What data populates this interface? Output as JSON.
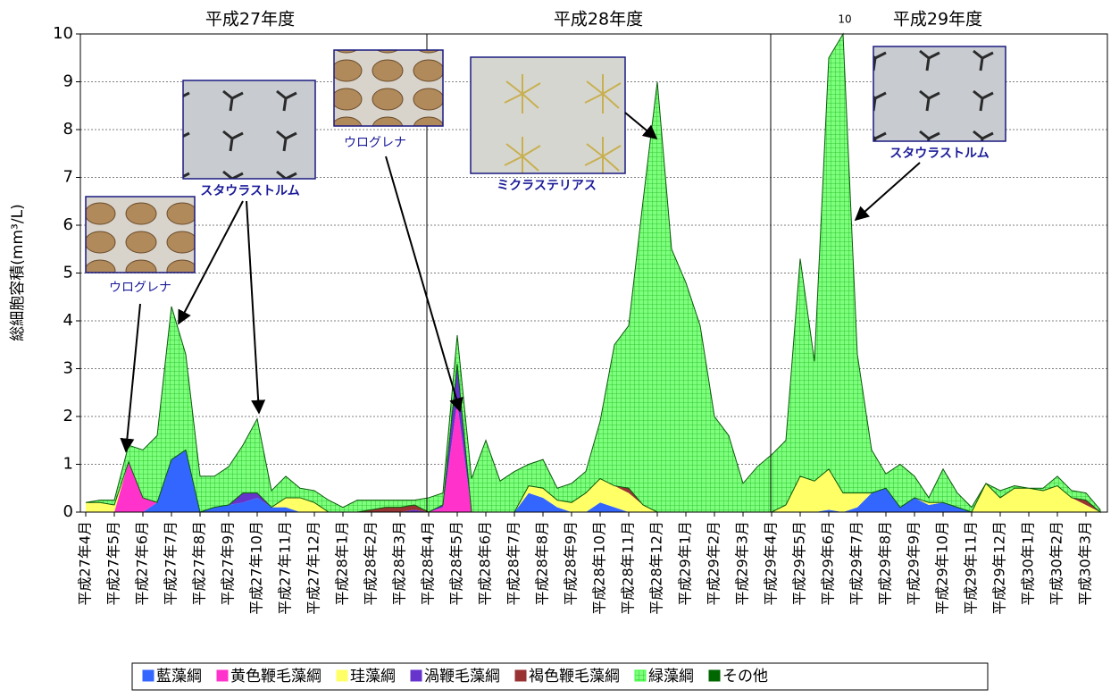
{
  "chart_data": {
    "type": "stacked-area",
    "y_label": "総細胞容積(mm³/L)",
    "annotations": {
      "years": [
        "平成27年度",
        "平成28年度",
        "平成29年度"
      ],
      "peak": "10",
      "captions": [
        "ウログレナ",
        "スタウラストルム",
        "ウログレナ",
        "ミクラステリアス",
        "スタウラストルム"
      ]
    },
    "categories": [
      "平成27年4月",
      null,
      "平成27年5月",
      null,
      "平成27年6月",
      null,
      "平成27年7月",
      null,
      "平成27年8月",
      null,
      "平成27年9月",
      null,
      "平成27年10月",
      null,
      "平成27年11月",
      null,
      "平成27年12月",
      null,
      "平成28年1月",
      null,
      "平成28年2月",
      null,
      "平成28年3月",
      null,
      "平成28年4月",
      null,
      "平成28年5月",
      null,
      "平成28年6月",
      null,
      "平成28年7月",
      null,
      "平成28年8月",
      null,
      "平成28年9月",
      null,
      "平成28年10月",
      null,
      "平成28年11月",
      null,
      "平成28年12月",
      null,
      "平成29年1月",
      null,
      "平成29年2月",
      null,
      "平成29年3月",
      null,
      "平成29年4月",
      null,
      "平成29年5月",
      null,
      "平成29年6月",
      null,
      "平成29年7月",
      null,
      "平成29年8月",
      null,
      "平成29年9月",
      null,
      "平成29年10月",
      null,
      "平成29年11月",
      null,
      "平成29年12月",
      null,
      "平成30年1月",
      null,
      "平成30年2月",
      null,
      "平成30年3月",
      null
    ],
    "series": [
      {
        "name": "藍藻綱",
        "color": "#3366ff",
        "values": [
          0,
          0,
          0,
          0,
          0,
          0.2,
          1.1,
          1.3,
          0,
          0.1,
          0.15,
          0.2,
          0.3,
          0.1,
          0.1,
          0,
          0,
          0,
          0,
          0,
          0,
          0,
          0,
          0,
          0,
          0,
          0,
          0,
          0,
          0,
          0,
          0.4,
          0.3,
          0.1,
          0,
          0,
          0.2,
          0.1,
          0,
          0,
          0,
          0,
          0,
          0,
          0,
          0,
          0,
          0,
          0,
          0,
          0,
          0,
          0.05,
          0,
          0.1,
          0.4,
          0.5,
          0.1,
          0.3,
          0.15,
          0.2,
          0.1,
          0,
          0,
          0,
          0,
          0,
          0,
          0,
          0,
          0,
          0
        ]
      },
      {
        "name": "黄色鞭毛藻綱",
        "color": "#ff33cc",
        "values": [
          0,
          0,
          0,
          1.05,
          0.3,
          0,
          0,
          0,
          0,
          0,
          0,
          0,
          0,
          0,
          0,
          0,
          0,
          0,
          0,
          0,
          0,
          0,
          0,
          0,
          0,
          0.1,
          2.3,
          0,
          0,
          0,
          0,
          0,
          0,
          0,
          0,
          0,
          0,
          0,
          0,
          0,
          0,
          0,
          0,
          0,
          0,
          0,
          0,
          0,
          0,
          0,
          0,
          0,
          0,
          0,
          0,
          0,
          0,
          0,
          0,
          0,
          0,
          0,
          0,
          0,
          0,
          0,
          0,
          0,
          0,
          0,
          0,
          0
        ]
      },
      {
        "name": "珪藻綱",
        "color": "#ffff66",
        "values": [
          0.2,
          0.2,
          0.15,
          0,
          0,
          0,
          0,
          0,
          0,
          0,
          0,
          0,
          0,
          0,
          0.2,
          0.3,
          0.2,
          0,
          0,
          0,
          0,
          0,
          0,
          0,
          0,
          0,
          0,
          0,
          0,
          0,
          0,
          0.15,
          0.2,
          0.15,
          0.2,
          0.4,
          0.5,
          0.45,
          0.4,
          0.15,
          0,
          0,
          0,
          0,
          0,
          0,
          0,
          0,
          0,
          0.15,
          0.75,
          0.65,
          0.85,
          0.4,
          0.3,
          0,
          0,
          0,
          0,
          0.05,
          0,
          0,
          0,
          0.6,
          0.3,
          0.5,
          0.5,
          0.45,
          0.55,
          0.3,
          0.15,
          0
        ]
      },
      {
        "name": "渦鞭毛藻綱",
        "color": "#6633cc",
        "values": [
          0,
          0,
          0,
          0,
          0,
          0,
          0,
          0,
          0,
          0,
          0,
          0.2,
          0.1,
          0,
          0,
          0,
          0,
          0,
          0,
          0,
          0,
          0,
          0,
          0.05,
          0,
          0.05,
          0.8,
          0,
          0,
          0,
          0,
          0,
          0,
          0,
          0,
          0,
          0,
          0,
          0,
          0,
          0,
          0,
          0,
          0,
          0,
          0,
          0,
          0,
          0,
          0,
          0,
          0,
          0,
          0,
          0,
          0,
          0,
          0,
          0,
          0,
          0,
          0,
          0,
          0,
          0,
          0,
          0,
          0,
          0,
          0,
          0,
          0
        ]
      },
      {
        "name": "褐色鞭毛藻綱",
        "color": "#993333",
        "values": [
          0,
          0,
          0,
          0,
          0,
          0,
          0,
          0,
          0,
          0,
          0,
          0,
          0,
          0,
          0,
          0,
          0,
          0,
          0,
          0,
          0.05,
          0.1,
          0.1,
          0.1,
          0,
          0,
          0,
          0,
          0,
          0,
          0,
          0,
          0,
          0,
          0,
          0,
          0,
          0,
          0.1,
          0,
          0,
          0,
          0,
          0,
          0,
          0,
          0,
          0,
          0,
          0,
          0,
          0,
          0,
          0,
          0,
          0,
          0,
          0,
          0,
          0,
          0,
          0,
          0,
          0,
          0,
          0,
          0,
          0,
          0,
          0,
          0.1,
          0
        ]
      },
      {
        "name": "緑藻綱",
        "color": "#33ff33",
        "values": [
          0,
          0.05,
          0.1,
          0.35,
          1.0,
          1.4,
          3.2,
          2.0,
          0.75,
          0.65,
          0.8,
          1.0,
          1.55,
          0.35,
          0.45,
          0.2,
          0.25,
          0.25,
          0.1,
          0.25,
          0.2,
          0.15,
          0.15,
          0.1,
          0.3,
          0.25,
          0.6,
          0.7,
          1.5,
          0.65,
          0.85,
          0.45,
          0.6,
          0.25,
          0.4,
          0.45,
          1.2,
          2.95,
          3.4,
          6.35,
          9.0,
          5.5,
          4.8,
          3.9,
          2.0,
          1.6,
          0.6,
          0.95,
          1.2,
          1.35,
          4.55,
          2.5,
          8.6,
          9.6,
          2.9,
          0.9,
          0.3,
          0.9,
          0.45,
          0.1,
          0.7,
          0.3,
          0.1,
          0,
          0.15,
          0.05,
          0,
          0.05,
          0.2,
          0.15,
          0.15,
          0.05
        ]
      },
      {
        "name": "その他",
        "color": "#006600",
        "values": [
          0,
          0,
          0,
          0,
          0,
          0,
          0,
          0,
          0,
          0,
          0,
          0,
          0,
          0,
          0,
          0,
          0,
          0,
          0,
          0,
          0,
          0,
          0,
          0,
          0,
          0,
          0,
          0,
          0,
          0,
          0,
          0,
          0,
          0,
          0,
          0,
          0,
          0,
          0,
          0,
          0,
          0,
          0,
          0,
          0,
          0,
          0,
          0,
          0,
          0,
          0,
          0,
          0,
          0,
          0,
          0,
          0,
          0,
          0,
          0,
          0,
          0,
          0,
          0,
          0,
          0,
          0,
          0,
          0,
          0,
          0,
          0
        ]
      }
    ],
    "ylim": [
      0,
      10
    ],
    "yticks": [
      0,
      1,
      2,
      3,
      4,
      5,
      6,
      7,
      8,
      9,
      10
    ],
    "grid": true
  }
}
